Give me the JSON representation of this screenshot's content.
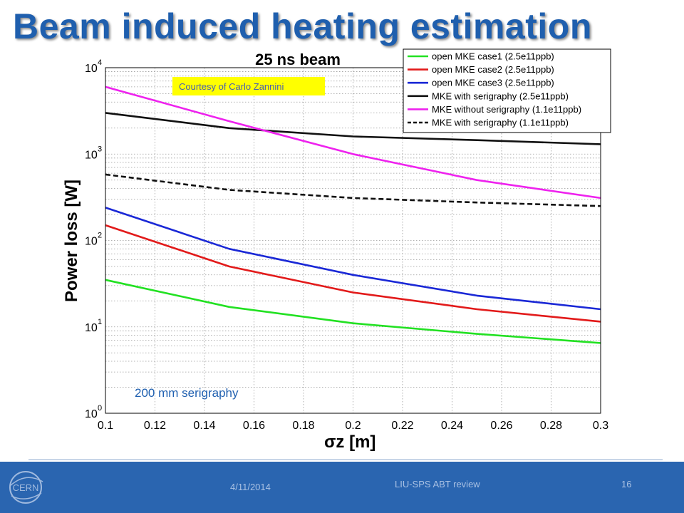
{
  "slide": {
    "title": "Beam induced heating estimation"
  },
  "footer": {
    "date": "4/11/2014",
    "center_text": "LIU-SPS ABT review",
    "page_number": "16",
    "logo_text": "CERN"
  },
  "colors": {
    "title": "#1f5fae",
    "footer_bg": "#2a65b0",
    "courtesy_bg": "#ffff00",
    "annotation_text": "#2060b0"
  },
  "chart_data": {
    "type": "line",
    "title": "25 ns beam",
    "xlabel": "σz [m]",
    "ylabel": "Power loss [W]",
    "xlim": [
      0.1,
      0.3
    ],
    "ylim": [
      1,
      10000
    ],
    "yscale": "log",
    "grid": true,
    "legend_position": "top-right",
    "x_ticks": [
      "0.1",
      "0.12",
      "0.14",
      "0.16",
      "0.18",
      "0.2",
      "0.22",
      "0.24",
      "0.26",
      "0.28",
      "0.3"
    ],
    "y_ticks": [
      {
        "base": "10",
        "exp": "0"
      },
      {
        "base": "10",
        "exp": "1"
      },
      {
        "base": "10",
        "exp": "2"
      },
      {
        "base": "10",
        "exp": "3"
      },
      {
        "base": "10",
        "exp": "4"
      }
    ],
    "series": [
      {
        "name": "open MKE case1 (2.5e11ppb)",
        "color": "#22e122",
        "dash": "solid",
        "x": [
          0.1,
          0.15,
          0.2,
          0.25,
          0.3
        ],
        "y": [
          35,
          17,
          11,
          8.3,
          6.5
        ]
      },
      {
        "name": "open MKE case2 (2.5e11ppb)",
        "color": "#e21a1a",
        "dash": "solid",
        "x": [
          0.1,
          0.15,
          0.2,
          0.25,
          0.3
        ],
        "y": [
          150,
          50,
          25,
          16,
          11.5
        ]
      },
      {
        "name": "open MKE case3 (2.5e11ppb)",
        "color": "#1a28d6",
        "dash": "solid",
        "x": [
          0.1,
          0.15,
          0.2,
          0.25,
          0.3
        ],
        "y": [
          240,
          80,
          40,
          23,
          16
        ]
      },
      {
        "name": "MKE with serigraphy (2.5e11ppb)",
        "color": "#111111",
        "dash": "solid",
        "x": [
          0.1,
          0.15,
          0.2,
          0.25,
          0.3
        ],
        "y": [
          3000,
          2000,
          1600,
          1450,
          1300
        ]
      },
      {
        "name": "MKE without serigraphy (1.1e11ppb)",
        "color": "#ee22ee",
        "dash": "solid",
        "x": [
          0.1,
          0.15,
          0.2,
          0.25,
          0.3
        ],
        "y": [
          6000,
          2400,
          1000,
          500,
          310
        ]
      },
      {
        "name": "MKE with serigraphy (1.1e11ppb)",
        "color": "#111111",
        "dash": "dashed",
        "x": [
          0.1,
          0.15,
          0.2,
          0.25,
          0.3
        ],
        "y": [
          580,
          385,
          310,
          275,
          250
        ]
      }
    ],
    "annotations": {
      "courtesy": "Courtesy of Carlo Zannini",
      "note": "200 mm serigraphy"
    }
  }
}
